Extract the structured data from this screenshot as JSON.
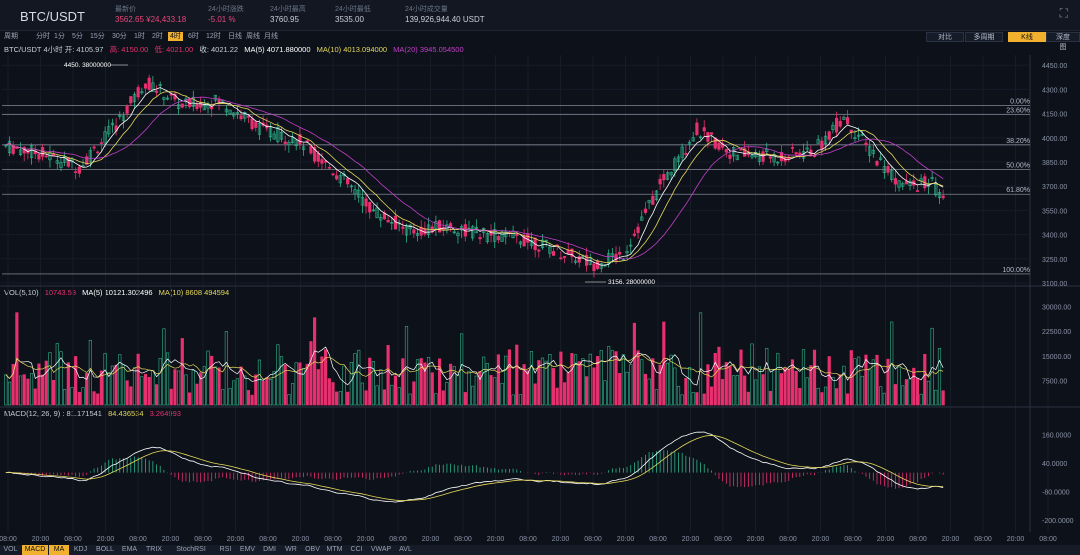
{
  "header": {
    "pair": "BTC/USDT",
    "stats": [
      {
        "label": "最新价",
        "value": "3562.65 ¥24,433.18",
        "red": true
      },
      {
        "label": "24小时涨跌",
        "value": "-5.01 %",
        "red": true
      },
      {
        "label": "24小时最高",
        "value": "3760.95",
        "red": false
      },
      {
        "label": "24小时最低",
        "value": "3535.00",
        "red": false
      },
      {
        "label": "24小时成交量",
        "value": "139,926,944.40 USDT",
        "red": false
      }
    ]
  },
  "toolbar": {
    "periods": [
      "分时",
      "1分",
      "5分",
      "15分",
      "30分",
      "1时",
      "2时",
      "4时",
      "6时",
      "12时",
      "日线",
      "周线",
      "月线"
    ],
    "active": "4时",
    "first": "周期",
    "right": [
      "对比",
      "多周期",
      "K线",
      "深度图"
    ],
    "right_active": "K线"
  },
  "info": {
    "ohlc": "BTC/USDT 4小时 开: 4105.97",
    "high": "高: 4150.00",
    "low": "低: 4021.00",
    "close": "收: 4021.22",
    "ma5": "MA(5) 4071.880000",
    "ma10": "MA(10) 4013.094000",
    "ma20": "MA(20) 3945.054500"
  },
  "vol_info": {
    "label": "VOL(5,10)",
    "value": "10743.53",
    "ma5": "MA(5)  10121.302496",
    "ma10": "MA(10)  8608.494594"
  },
  "macd_info": {
    "label": "MACD(12, 26, 9) : 81.171541",
    "v2": "84.436534",
    "v3": "3.264993"
  },
  "price_axis": [
    "4450.00",
    "4300.00",
    "4150.00",
    "4000.00",
    "3850.00",
    "3700.00",
    "3550.00",
    "3400.00",
    "3250.00",
    "3100.00"
  ],
  "fib_levels": [
    "0.00%",
    "23.60%",
    "38.20%",
    "50.00%",
    "61.80%",
    "100.00%"
  ],
  "annotations": {
    "high": "4450. 38000000",
    "low": "3156. 28000000"
  },
  "vol_axis": [
    "30000.00",
    "22500.00",
    "15000.00",
    "7500.00"
  ],
  "macd_axis": [
    "160.0000",
    "40.0000",
    "-80.0000",
    "-200.0000"
  ],
  "time_axis": [
    "08:00",
    "20:00",
    "08:00",
    "20:00",
    "08:00",
    "20:00",
    "08:00",
    "20:00",
    "08:00",
    "20:00",
    "08:00",
    "20:00",
    "08:00",
    "20:00",
    "08:00",
    "20:00",
    "08:00",
    "20:00",
    "08:00",
    "20:00",
    "08:00",
    "20:00",
    "08:00",
    "20:00",
    "08:00",
    "20:00",
    "08:00",
    "20:00",
    "08:00",
    "20:00",
    "08:00",
    "20:00",
    "08:00"
  ],
  "bottom_tabs": [
    "VOL",
    "MACD",
    "MA",
    "KDJ",
    "BOLL",
    "EMA",
    "TRIX",
    "StochRSI",
    "RSI",
    "EMV",
    "DMI",
    "WR",
    "OBV",
    "MTM",
    "CCI",
    "VWAP",
    "AVL"
  ],
  "bottom_active": [
    "MACD",
    "MA"
  ],
  "colors": {
    "up": "#2fb58c",
    "down": "#e8306f",
    "ma5": "#ffffff",
    "ma10": "#e6d85a",
    "ma20": "#c23fc9",
    "accent": "#f2b02f"
  }
}
